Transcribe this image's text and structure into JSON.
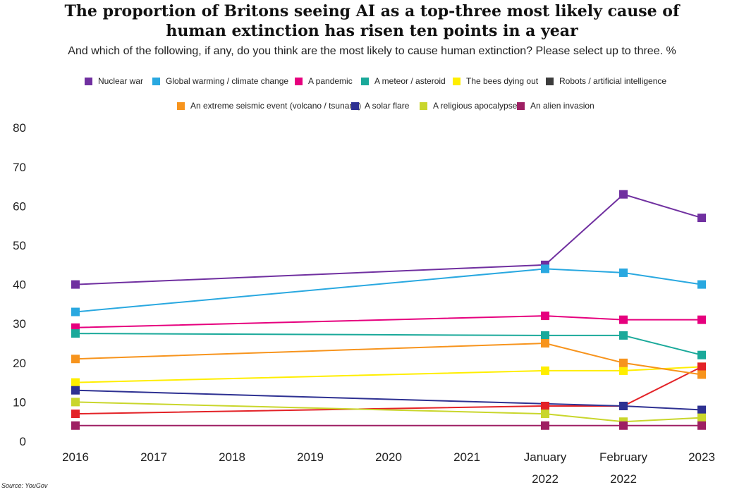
{
  "chart_data": {
    "type": "line",
    "title_lines": [
      "The proportion of Britons seeing AI as a top-three most likely cause of",
      "human extinction has risen ten points in a year"
    ],
    "subtitle": "And which of the following, if any, do you think are the most likely to cause human extinction? Please select up to three. %",
    "x_labels": [
      {
        "line1": "2016",
        "line2": ""
      },
      {
        "line1": "2017",
        "line2": ""
      },
      {
        "line1": "2018",
        "line2": ""
      },
      {
        "line1": "2019",
        "line2": ""
      },
      {
        "line1": "2020",
        "line2": ""
      },
      {
        "line1": "2021",
        "line2": ""
      },
      {
        "line1": "January",
        "line2": "2022"
      },
      {
        "line1": "February",
        "line2": "2022"
      },
      {
        "line1": "2023",
        "line2": ""
      }
    ],
    "y_ticks": [
      "0",
      "10",
      "20",
      "30",
      "40",
      "50",
      "60",
      "70",
      "80"
    ],
    "ylim": [
      0,
      80
    ],
    "grid": false,
    "legend_position": "top",
    "series": [
      {
        "name": "Nuclear war",
        "color": "#7030a0",
        "points": [
          [
            0,
            40
          ],
          [
            6,
            45
          ],
          [
            7,
            63
          ],
          [
            8,
            57
          ]
        ]
      },
      {
        "name": "Global warming / climate change",
        "color": "#29a8e0",
        "points": [
          [
            0,
            33
          ],
          [
            6,
            44
          ],
          [
            7,
            43
          ],
          [
            8,
            40
          ]
        ]
      },
      {
        "name": "A pandemic",
        "color": "#e6007e",
        "points": [
          [
            0,
            29
          ],
          [
            6,
            32
          ],
          [
            7,
            31
          ],
          [
            8,
            31
          ]
        ]
      },
      {
        "name": "A meteor / asteroid",
        "color": "#1aa99a",
        "points": [
          [
            0,
            27.5
          ],
          [
            6,
            27
          ],
          [
            7,
            27
          ],
          [
            8,
            22
          ]
        ]
      },
      {
        "name": "The bees dying out",
        "color": "#ffee00",
        "points": [
          [
            0,
            15
          ],
          [
            6,
            18
          ],
          [
            7,
            18
          ],
          [
            8,
            19
          ]
        ]
      },
      {
        "name": "Robots / artificial intelligence",
        "color": "#3c3c3c",
        "points": [
          [
            0,
            7
          ],
          [
            6,
            9
          ],
          [
            7,
            9
          ],
          [
            8,
            19
          ]
        ],
        "line_color": "#e32227"
      },
      {
        "name": "An extreme seismic event (volcano / tsunami)",
        "color": "#f7941d",
        "points": [
          [
            0,
            21
          ],
          [
            6,
            25
          ],
          [
            7,
            20
          ],
          [
            8,
            17
          ]
        ]
      },
      {
        "name": "A solar flare",
        "color": "#2e3192",
        "points": [
          [
            0,
            13
          ],
          [
            7,
            9
          ],
          [
            8,
            8
          ]
        ]
      },
      {
        "name": "A religious apocalypse",
        "color": "#c9d62c",
        "points": [
          [
            0,
            10
          ],
          [
            6,
            7
          ],
          [
            7,
            5
          ],
          [
            8,
            6
          ]
        ]
      },
      {
        "name": "An alien invasion",
        "color": "#9e1f63",
        "points": [
          [
            0,
            4
          ],
          [
            6,
            4
          ],
          [
            7,
            4
          ],
          [
            8,
            4
          ]
        ]
      }
    ],
    "source": "Source: YouGov"
  }
}
